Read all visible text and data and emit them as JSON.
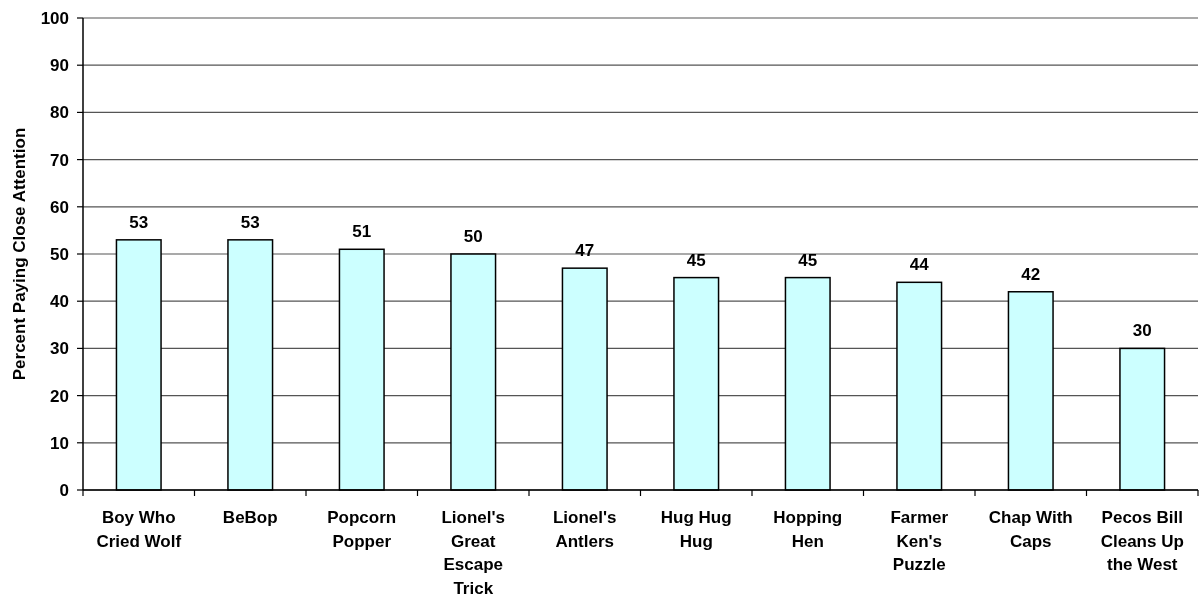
{
  "chart_data": {
    "type": "bar",
    "ylabel": "Percent Paying Close Attention",
    "categories": [
      "Boy Who Cried Wolf",
      "BeBop",
      "Popcorn Popper",
      "Lionel's Great Escape Trick",
      "Lionel's Antlers",
      "Hug Hug Hug",
      "Hopping Hen",
      "Farmer Ken's Puzzle",
      "Chap With Caps",
      "Pecos Bill Cleans Up the West"
    ],
    "values": [
      53,
      53,
      51,
      50,
      47,
      45,
      45,
      44,
      42,
      30
    ],
    "color": "#ccffff",
    "ylim": [
      0,
      100
    ],
    "yticks": [
      0,
      10,
      20,
      30,
      40,
      50,
      60,
      70,
      80,
      90,
      100
    ],
    "grid": "y",
    "data_labels": true
  }
}
